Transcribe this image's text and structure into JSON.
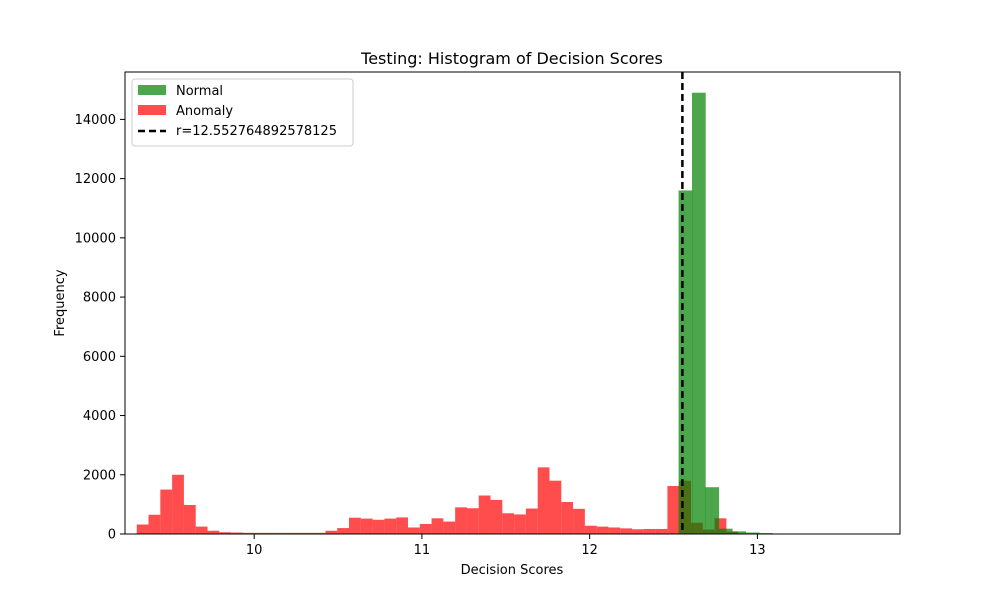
{
  "chart_data": {
    "type": "bar",
    "title": "Testing: Histogram of Decision Scores",
    "xlabel": "Decision Scores",
    "ylabel": "Frequency",
    "xlim": [
      9.23,
      13.85
    ],
    "ylim": [
      0,
      15600
    ],
    "xticks": [
      10,
      11,
      12,
      13
    ],
    "yticks": [
      0,
      2000,
      4000,
      6000,
      8000,
      10000,
      12000,
      14000
    ],
    "grid": false,
    "legend_position": "top-left",
    "series": [
      {
        "name": "Normal",
        "color": "#008000",
        "opacity": 0.7,
        "bin_width": 0.0817,
        "bins": [
          {
            "x0": 12.53,
            "y": 11600
          },
          {
            "x0": 12.61,
            "y": 14900
          },
          {
            "x0": 12.69,
            "y": 1580
          },
          {
            "x0": 12.77,
            "y": 180
          },
          {
            "x0": 12.85,
            "y": 90
          },
          {
            "x0": 12.93,
            "y": 50
          },
          {
            "x0": 13.01,
            "y": 30
          },
          {
            "x0": 13.09,
            "y": 15
          },
          {
            "x0": 13.17,
            "y": 6
          },
          {
            "x0": 13.25,
            "y": 3
          },
          {
            "x0": 13.33,
            "y": 2
          },
          {
            "x0": 13.41,
            "y": 1
          },
          {
            "x0": 13.49,
            "y": 1
          },
          {
            "x0": 13.57,
            "y": 0
          },
          {
            "x0": 13.65,
            "y": 1
          }
        ]
      },
      {
        "name": "Anomaly",
        "color": "#ff0000",
        "opacity": 0.7,
        "bin_width": 0.0703,
        "start": 9.3,
        "values": [
          320,
          650,
          1500,
          2000,
          980,
          250,
          110,
          60,
          50,
          40,
          40,
          40,
          40,
          40,
          40,
          40,
          110,
          200,
          550,
          520,
          480,
          520,
          560,
          220,
          340,
          530,
          420,
          900,
          870,
          1300,
          1150,
          700,
          660,
          860,
          2250,
          1800,
          1080,
          850,
          280,
          250,
          220,
          190,
          160,
          170,
          170,
          1620,
          1800,
          380,
          150,
          530,
          80
        ]
      }
    ],
    "threshold": {
      "name": "r=12.552764892578125",
      "value": 12.552764892578125,
      "color": "#000000",
      "style": "dashed"
    }
  }
}
